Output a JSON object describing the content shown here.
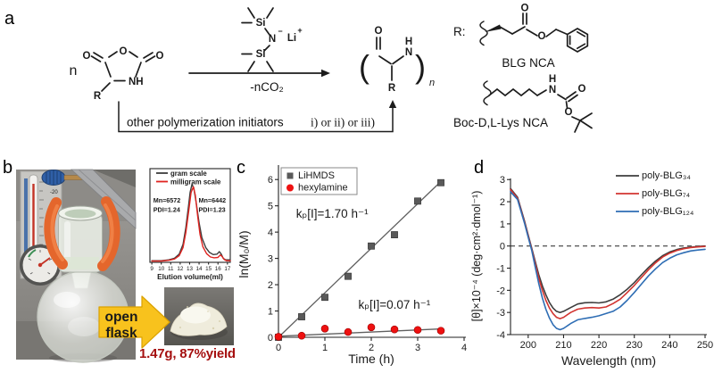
{
  "panels": {
    "a": "a",
    "b": "b",
    "c": "c",
    "d": "d"
  },
  "palette": {
    "arrow_yellow": "#f8c21d",
    "yield_red": "#a50f0f",
    "clamp_orange": "#e4662c",
    "series_black": "#3d3d3d",
    "series_red": "#d23430",
    "series_blue": "#2e6db4",
    "marker_gray": "#595959",
    "marker_red": "#ee1111"
  },
  "scheme": {
    "n_prefix": "n",
    "monomer": {
      "o_ring": "O",
      "o_left": "O",
      "o_right": "O",
      "nh": "NH",
      "r": "R"
    },
    "lihmds": {
      "si_top": "Si",
      "si_bot": "Si",
      "n": "N",
      "minus": "−",
      "li": "Li",
      "plus": "+"
    },
    "arrow_caption": "-nCO₂",
    "alt_initiators_sans": "other polymerization initiators",
    "alt_initiators_serif": "i) or ii) or iii)",
    "product": {
      "lparen": "(",
      "o": "O",
      "h": "H",
      "n": "N",
      "r": "R",
      "rparen": ")",
      "n_sub": "n"
    },
    "r_colon": "R:",
    "blg": {
      "o_top": "O",
      "o_ester": "O",
      "label": "BLG NCA"
    },
    "boc": {
      "h": "H",
      "n": "N",
      "o_top": "O",
      "o_bottom": "O",
      "label": "Boc-D,L-Lys NCA"
    }
  },
  "photo": {
    "thermometer_reading": "-20",
    "open_flask_line1": "open",
    "open_flask_line2": "flask",
    "yield_text": "1.47g, 87%yield"
  },
  "chart_data": [
    {
      "id": "gpc",
      "type": "line",
      "title": "",
      "xlabel": "Elution volume(ml)",
      "ylabel": "",
      "xlim": [
        8.8,
        17.3
      ],
      "xticks": [
        9,
        10,
        11,
        12,
        13,
        14,
        15,
        16,
        17
      ],
      "ylim": [
        0,
        1.14
      ],
      "legend_position": "top-left",
      "grid": false,
      "legend": [
        {
          "label": "gram scale",
          "color": "#3d3d3d"
        },
        {
          "label": "milligram scale",
          "color": "#e02420"
        }
      ],
      "annotations": [
        {
          "text": "Mn=6572",
          "x": 9.15,
          "y": 0.73,
          "color": "#3d3d3d"
        },
        {
          "text": "PDI=1.24",
          "x": 9.15,
          "y": 0.615,
          "color": "#3d3d3d"
        },
        {
          "text": "Mn=6442",
          "x": 13.95,
          "y": 0.73,
          "color": "#3d3d3d"
        },
        {
          "text": "PDI=1.23",
          "x": 13.95,
          "y": 0.615,
          "color": "#3d3d3d"
        }
      ],
      "series": [
        {
          "name": "gram scale",
          "color": "#3d3d3d",
          "x": [
            9,
            10,
            10.8,
            11.4,
            11.9,
            12.3,
            12.6,
            12.9,
            13.05,
            13.25,
            13.45,
            13.7,
            14,
            14.3,
            14.7,
            15.1,
            15.5,
            15.9,
            16.15,
            16.35,
            16.55,
            16.8,
            17.3
          ],
          "y": [
            0.02,
            0.02,
            0.03,
            0.05,
            0.1,
            0.22,
            0.42,
            0.7,
            0.85,
            0.95,
            0.9,
            0.72,
            0.48,
            0.3,
            0.18,
            0.12,
            0.095,
            0.1,
            0.13,
            0.1,
            0.05,
            0.03,
            0.03
          ]
        },
        {
          "name": "milligram scale",
          "color": "#e02420",
          "x": [
            9,
            10,
            10.8,
            11.4,
            11.9,
            12.3,
            12.6,
            12.9,
            13.15,
            13.4,
            13.6,
            13.85,
            14.1,
            14.4,
            14.8,
            15.2,
            15.6,
            16,
            16.25,
            16.45,
            16.65,
            16.9,
            17.3
          ],
          "y": [
            0.015,
            0.015,
            0.025,
            0.04,
            0.08,
            0.18,
            0.36,
            0.62,
            0.85,
            0.92,
            0.82,
            0.56,
            0.34,
            0.19,
            0.105,
            0.065,
            0.055,
            0.06,
            0.09,
            0.07,
            0.035,
            0.02,
            0.02
          ]
        }
      ]
    },
    {
      "id": "kinetics",
      "type": "scatter",
      "title": "",
      "xlabel": "Time (h)",
      "ylabel": "ln(M₀/M)",
      "xlim": [
        0,
        4.0
      ],
      "xticks": [
        0,
        1,
        2,
        3,
        4
      ],
      "ylim": [
        0,
        6.55
      ],
      "yticks": [
        0,
        1,
        2,
        3,
        4,
        5,
        6
      ],
      "legend_position": "top-left-box",
      "grid": false,
      "legend": [
        {
          "label": "LiHMDS",
          "marker": "square",
          "color": "#595959"
        },
        {
          "label": "hexylamine",
          "marker": "circle",
          "color": "#ee1111"
        }
      ],
      "annotations": [
        {
          "text": "kₚ[I]=1.70 h⁻¹",
          "x": 0.38,
          "y": 4.55,
          "color": "#1a1a1a"
        },
        {
          "text": "kₚ[I]=0.07 h⁻¹",
          "x": 1.72,
          "y": 1.08,
          "color": "#e8140f"
        }
      ],
      "series": [
        {
          "name": "LiHMDS",
          "marker": "square",
          "color": "#595959",
          "x": [
            0,
            0.5,
            1,
            1.5,
            2,
            2.5,
            3,
            3.5
          ],
          "y": [
            0,
            0.78,
            1.52,
            2.32,
            3.47,
            3.9,
            5.18,
            5.88
          ],
          "fit": {
            "x": [
              0,
              3.52
            ],
            "y": [
              0,
              5.96
            ],
            "color": "#606060"
          }
        },
        {
          "name": "hexylamine",
          "marker": "circle",
          "color": "#ee1111",
          "x": [
            0,
            0.5,
            1,
            1.5,
            2,
            2.5,
            3,
            3.5
          ],
          "y": [
            0.02,
            0.06,
            0.33,
            0.2,
            0.38,
            0.3,
            0.28,
            0.25
          ],
          "fit": {
            "x": [
              0,
              3.52
            ],
            "y": [
              0.04,
              0.32
            ],
            "color": "#606060"
          }
        }
      ]
    },
    {
      "id": "cd",
      "type": "line",
      "title": "",
      "xlabel": "Wavelength (nm)",
      "ylabel": "[θ]×10⁻⁴ (deg·cm²·dmol⁻¹)",
      "xlim": [
        195,
        250
      ],
      "xticks": [
        200,
        210,
        220,
        230,
        240,
        250
      ],
      "ylim": [
        -4,
        3.05
      ],
      "yticks": [
        -4,
        -3,
        -2,
        -1,
        0,
        1,
        2,
        3
      ],
      "zero_line": true,
      "legend_position": "top-right",
      "grid": false,
      "legend": [
        {
          "label": "poly-BLG₃₄",
          "color": "#3d3d3d"
        },
        {
          "label": "poly-BLG₇₄",
          "color": "#d23430"
        },
        {
          "label": "poly-BLG₁₂₄",
          "color": "#2e6db4"
        }
      ],
      "series": [
        {
          "name": "poly-BLG₃₄",
          "color": "#3d3d3d",
          "x": [
            195,
            197,
            199,
            200,
            201,
            202,
            203,
            204,
            205,
            206,
            207,
            208,
            209,
            210,
            212,
            214,
            216,
            218,
            220,
            222,
            224,
            226,
            228,
            230,
            232,
            234,
            236,
            238,
            240,
            242,
            244,
            246,
            248,
            250
          ],
          "y": [
            2.6,
            2.2,
            1.1,
            0.5,
            -0.1,
            -0.7,
            -1.3,
            -1.8,
            -2.2,
            -2.55,
            -2.8,
            -2.95,
            -3.0,
            -2.95,
            -2.78,
            -2.62,
            -2.56,
            -2.55,
            -2.57,
            -2.52,
            -2.4,
            -2.2,
            -1.95,
            -1.65,
            -1.3,
            -0.97,
            -0.68,
            -0.44,
            -0.27,
            -0.16,
            -0.09,
            -0.05,
            -0.02,
            0.0
          ]
        },
        {
          "name": "poly-BLG₇₄",
          "color": "#d23430",
          "x": [
            195,
            197,
            199,
            200,
            201,
            202,
            203,
            204,
            205,
            206,
            207,
            208,
            209,
            210,
            212,
            214,
            216,
            218,
            220,
            222,
            224,
            226,
            228,
            230,
            232,
            234,
            236,
            238,
            240,
            242,
            244,
            246,
            248,
            250
          ],
          "y": [
            2.55,
            2.15,
            1.05,
            0.45,
            -0.15,
            -0.8,
            -1.45,
            -2.0,
            -2.45,
            -2.8,
            -3.05,
            -3.22,
            -3.28,
            -3.22,
            -3.0,
            -2.85,
            -2.8,
            -2.78,
            -2.8,
            -2.75,
            -2.6,
            -2.4,
            -2.1,
            -1.78,
            -1.42,
            -1.07,
            -0.76,
            -0.5,
            -0.32,
            -0.2,
            -0.12,
            -0.07,
            -0.04,
            -0.02
          ]
        },
        {
          "name": "poly-BLG₁₂₄",
          "color": "#2e6db4",
          "x": [
            195,
            197,
            199,
            200,
            201,
            202,
            203,
            204,
            205,
            206,
            207,
            208,
            209,
            210,
            212,
            214,
            216,
            218,
            220,
            222,
            224,
            226,
            228,
            230,
            232,
            234,
            236,
            238,
            240,
            242,
            244,
            246,
            248,
            250
          ],
          "y": [
            2.45,
            2.1,
            1.0,
            0.4,
            -0.2,
            -0.95,
            -1.7,
            -2.35,
            -2.85,
            -3.25,
            -3.55,
            -3.72,
            -3.78,
            -3.72,
            -3.5,
            -3.33,
            -3.27,
            -3.22,
            -3.15,
            -3.05,
            -2.95,
            -2.75,
            -2.45,
            -2.1,
            -1.72,
            -1.35,
            -1.03,
            -0.75,
            -0.55,
            -0.4,
            -0.3,
            -0.22,
            -0.18,
            -0.15
          ]
        }
      ]
    }
  ]
}
